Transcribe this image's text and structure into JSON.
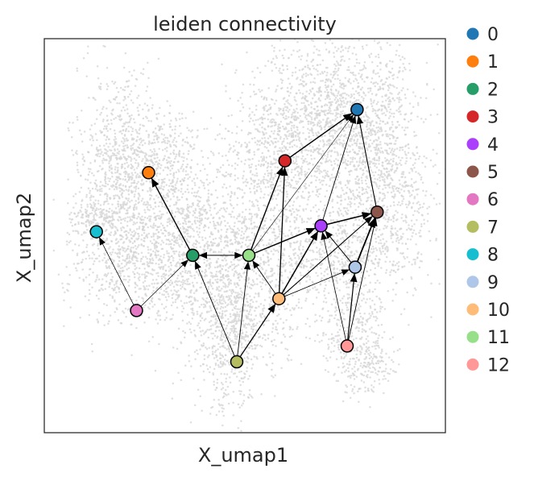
{
  "chart_data": {
    "type": "scatter",
    "title": "leiden connectivity",
    "xlabel": "X_umap1",
    "ylabel": "X_umap2",
    "grid": false,
    "legend_position": "right",
    "background_cloud_color": "#d4d4d4",
    "edge_color": "#000000",
    "nodes": [
      {
        "id": "0",
        "color": "#1f77b4",
        "x": 7.8,
        "y": 8.2
      },
      {
        "id": "1",
        "color": "#ff7f0e",
        "x": 2.6,
        "y": 6.6
      },
      {
        "id": "2",
        "color": "#279e68",
        "x": 3.7,
        "y": 4.5
      },
      {
        "id": "3",
        "color": "#d62728",
        "x": 6.0,
        "y": 6.9
      },
      {
        "id": "4",
        "color": "#aa40fc",
        "x": 6.9,
        "y": 5.25
      },
      {
        "id": "5",
        "color": "#8c564b",
        "x": 8.3,
        "y": 5.6
      },
      {
        "id": "6",
        "color": "#e377c2",
        "x": 2.3,
        "y": 3.1
      },
      {
        "id": "7",
        "color": "#b5bd61",
        "x": 4.8,
        "y": 1.8
      },
      {
        "id": "8",
        "color": "#17becf",
        "x": 1.3,
        "y": 5.1
      },
      {
        "id": "9",
        "color": "#aec7e8",
        "x": 7.75,
        "y": 4.2
      },
      {
        "id": "10",
        "color": "#ffbb78",
        "x": 5.85,
        "y": 3.4
      },
      {
        "id": "11",
        "color": "#98df8a",
        "x": 5.1,
        "y": 4.5
      },
      {
        "id": "12",
        "color": "#ff9896",
        "x": 7.55,
        "y": 2.2
      }
    ],
    "edges": [
      {
        "from": "6",
        "to": "8",
        "weight": 0.7
      },
      {
        "from": "6",
        "to": "2",
        "weight": 0.7
      },
      {
        "from": "2",
        "to": "1",
        "weight": 1.4
      },
      {
        "from": "2",
        "to": "11",
        "weight": 1.0,
        "bidirectional": true
      },
      {
        "from": "7",
        "to": "2",
        "weight": 0.9
      },
      {
        "from": "7",
        "to": "11",
        "weight": 0.9
      },
      {
        "from": "7",
        "to": "10",
        "weight": 1.3
      },
      {
        "from": "11",
        "to": "3",
        "weight": 1.4
      },
      {
        "from": "11",
        "to": "0",
        "weight": 0.6
      },
      {
        "from": "11",
        "to": "4",
        "weight": 1.4
      },
      {
        "from": "3",
        "to": "0",
        "weight": 1.4
      },
      {
        "from": "10",
        "to": "11",
        "weight": 0.9
      },
      {
        "from": "10",
        "to": "3",
        "weight": 1.3
      },
      {
        "from": "10",
        "to": "4",
        "weight": 1.5
      },
      {
        "from": "10",
        "to": "5",
        "weight": 1.1
      },
      {
        "from": "10",
        "to": "9",
        "weight": 0.8
      },
      {
        "from": "4",
        "to": "0",
        "weight": 0.9
      },
      {
        "from": "4",
        "to": "5",
        "weight": 1.5
      },
      {
        "from": "5",
        "to": "0",
        "weight": 1.1
      },
      {
        "from": "9",
        "to": "4",
        "weight": 1.0
      },
      {
        "from": "9",
        "to": "5",
        "weight": 1.8
      },
      {
        "from": "12",
        "to": "9",
        "weight": 1.2
      },
      {
        "from": "12",
        "to": "4",
        "weight": 0.8
      },
      {
        "from": "12",
        "to": "5",
        "weight": 0.9
      }
    ],
    "legend": [
      {
        "label": "0",
        "color": "#1f77b4"
      },
      {
        "label": "1",
        "color": "#ff7f0e"
      },
      {
        "label": "2",
        "color": "#279e68"
      },
      {
        "label": "3",
        "color": "#d62728"
      },
      {
        "label": "4",
        "color": "#aa40fc"
      },
      {
        "label": "5",
        "color": "#8c564b"
      },
      {
        "label": "6",
        "color": "#e377c2"
      },
      {
        "label": "7",
        "color": "#b5bd61"
      },
      {
        "label": "8",
        "color": "#17becf"
      },
      {
        "label": "9",
        "color": "#aec7e8"
      },
      {
        "label": "10",
        "color": "#ffbb78"
      },
      {
        "label": "11",
        "color": "#98df8a"
      },
      {
        "label": "12",
        "color": "#ff9896"
      }
    ]
  }
}
